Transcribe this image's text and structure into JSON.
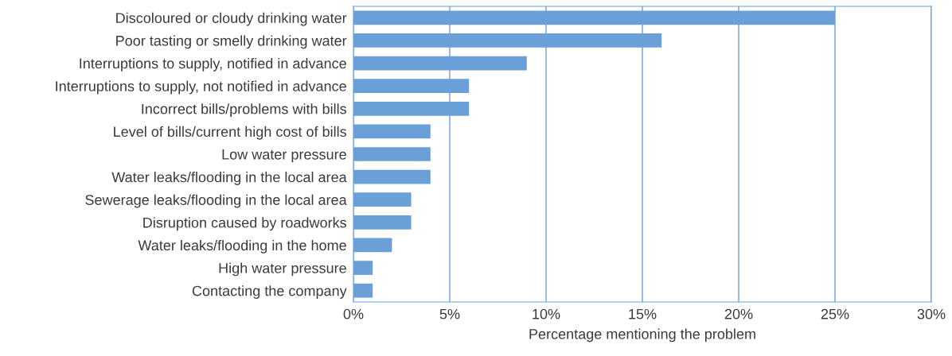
{
  "chart_data": {
    "type": "bar",
    "orientation": "horizontal",
    "xlabel": "Percentage mentioning the problem",
    "categories": [
      "Discoloured or cloudy drinking water",
      "Poor tasting or smelly drinking water",
      "Interruptions to supply, notified in advance",
      "Interruptions to supply, not notified in advance",
      "Incorrect bills/problems with bills",
      "Level of bills/current high cost of bills",
      "Low water pressure",
      "Water leaks/flooding in the local area",
      "Sewerage leaks/flooding in the local area",
      "Disruption caused by roadworks",
      "Water leaks/flooding in the home",
      "High water pressure",
      "Contacting the company"
    ],
    "values": [
      25,
      16,
      9,
      6,
      6,
      4,
      4,
      4,
      3,
      3,
      2,
      1,
      1
    ],
    "color": "#6a9fd8",
    "xlim": [
      0,
      30
    ],
    "xticks": [
      {
        "value": 0,
        "label": "0%"
      },
      {
        "value": 5,
        "label": "5%"
      },
      {
        "value": 10,
        "label": "10%"
      },
      {
        "value": 15,
        "label": "15%"
      },
      {
        "value": 20,
        "label": "20%"
      },
      {
        "value": 25,
        "label": "25%"
      },
      {
        "value": 30,
        "label": "30%"
      }
    ],
    "grid": "x"
  }
}
